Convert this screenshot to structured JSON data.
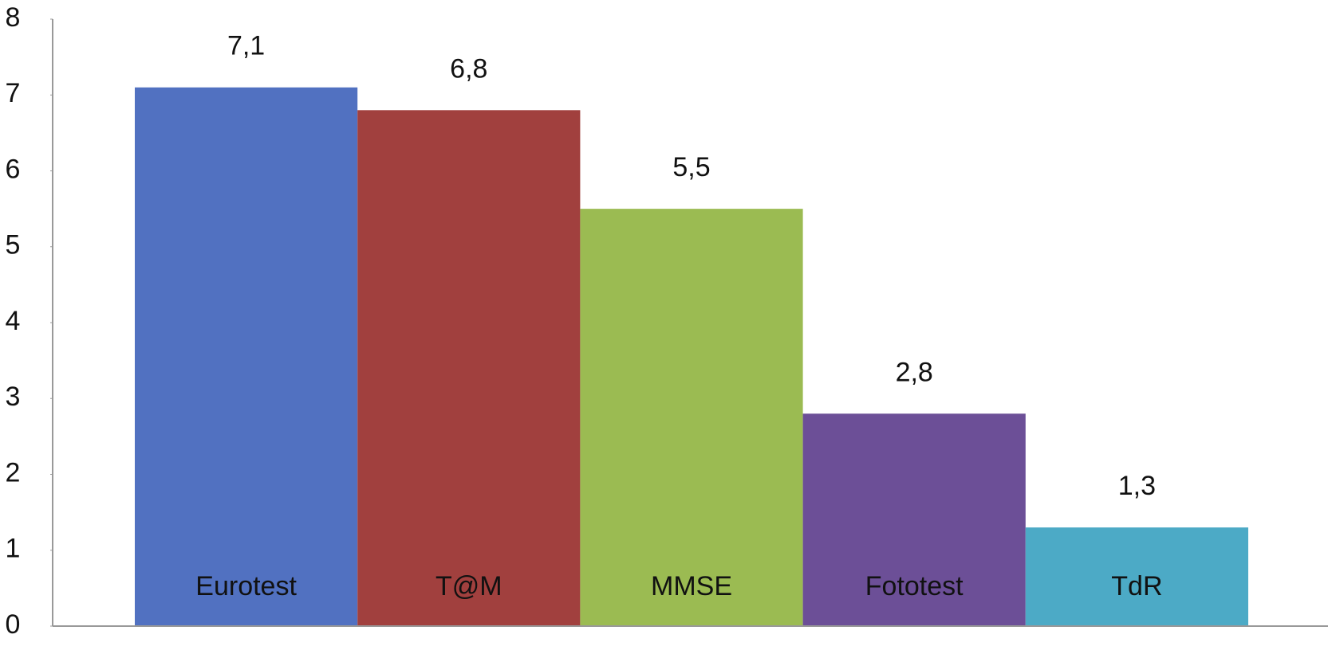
{
  "chart_data": {
    "type": "bar",
    "categories": [
      "Eurotest",
      "T@M",
      "MMSE",
      "Fototest",
      "TdR"
    ],
    "values": [
      7.1,
      6.8,
      5.5,
      2.8,
      1.3
    ],
    "value_labels": [
      "7,1",
      "6,8",
      "5,5",
      "2,8",
      "1,3"
    ],
    "colors": [
      "#5171c1",
      "#a1403e",
      "#9bbb52",
      "#6c4f97",
      "#4caac6"
    ],
    "ylim": [
      0,
      8
    ],
    "yticks": [
      0,
      1,
      2,
      3,
      4,
      5,
      6,
      7,
      8
    ],
    "grid": false
  }
}
